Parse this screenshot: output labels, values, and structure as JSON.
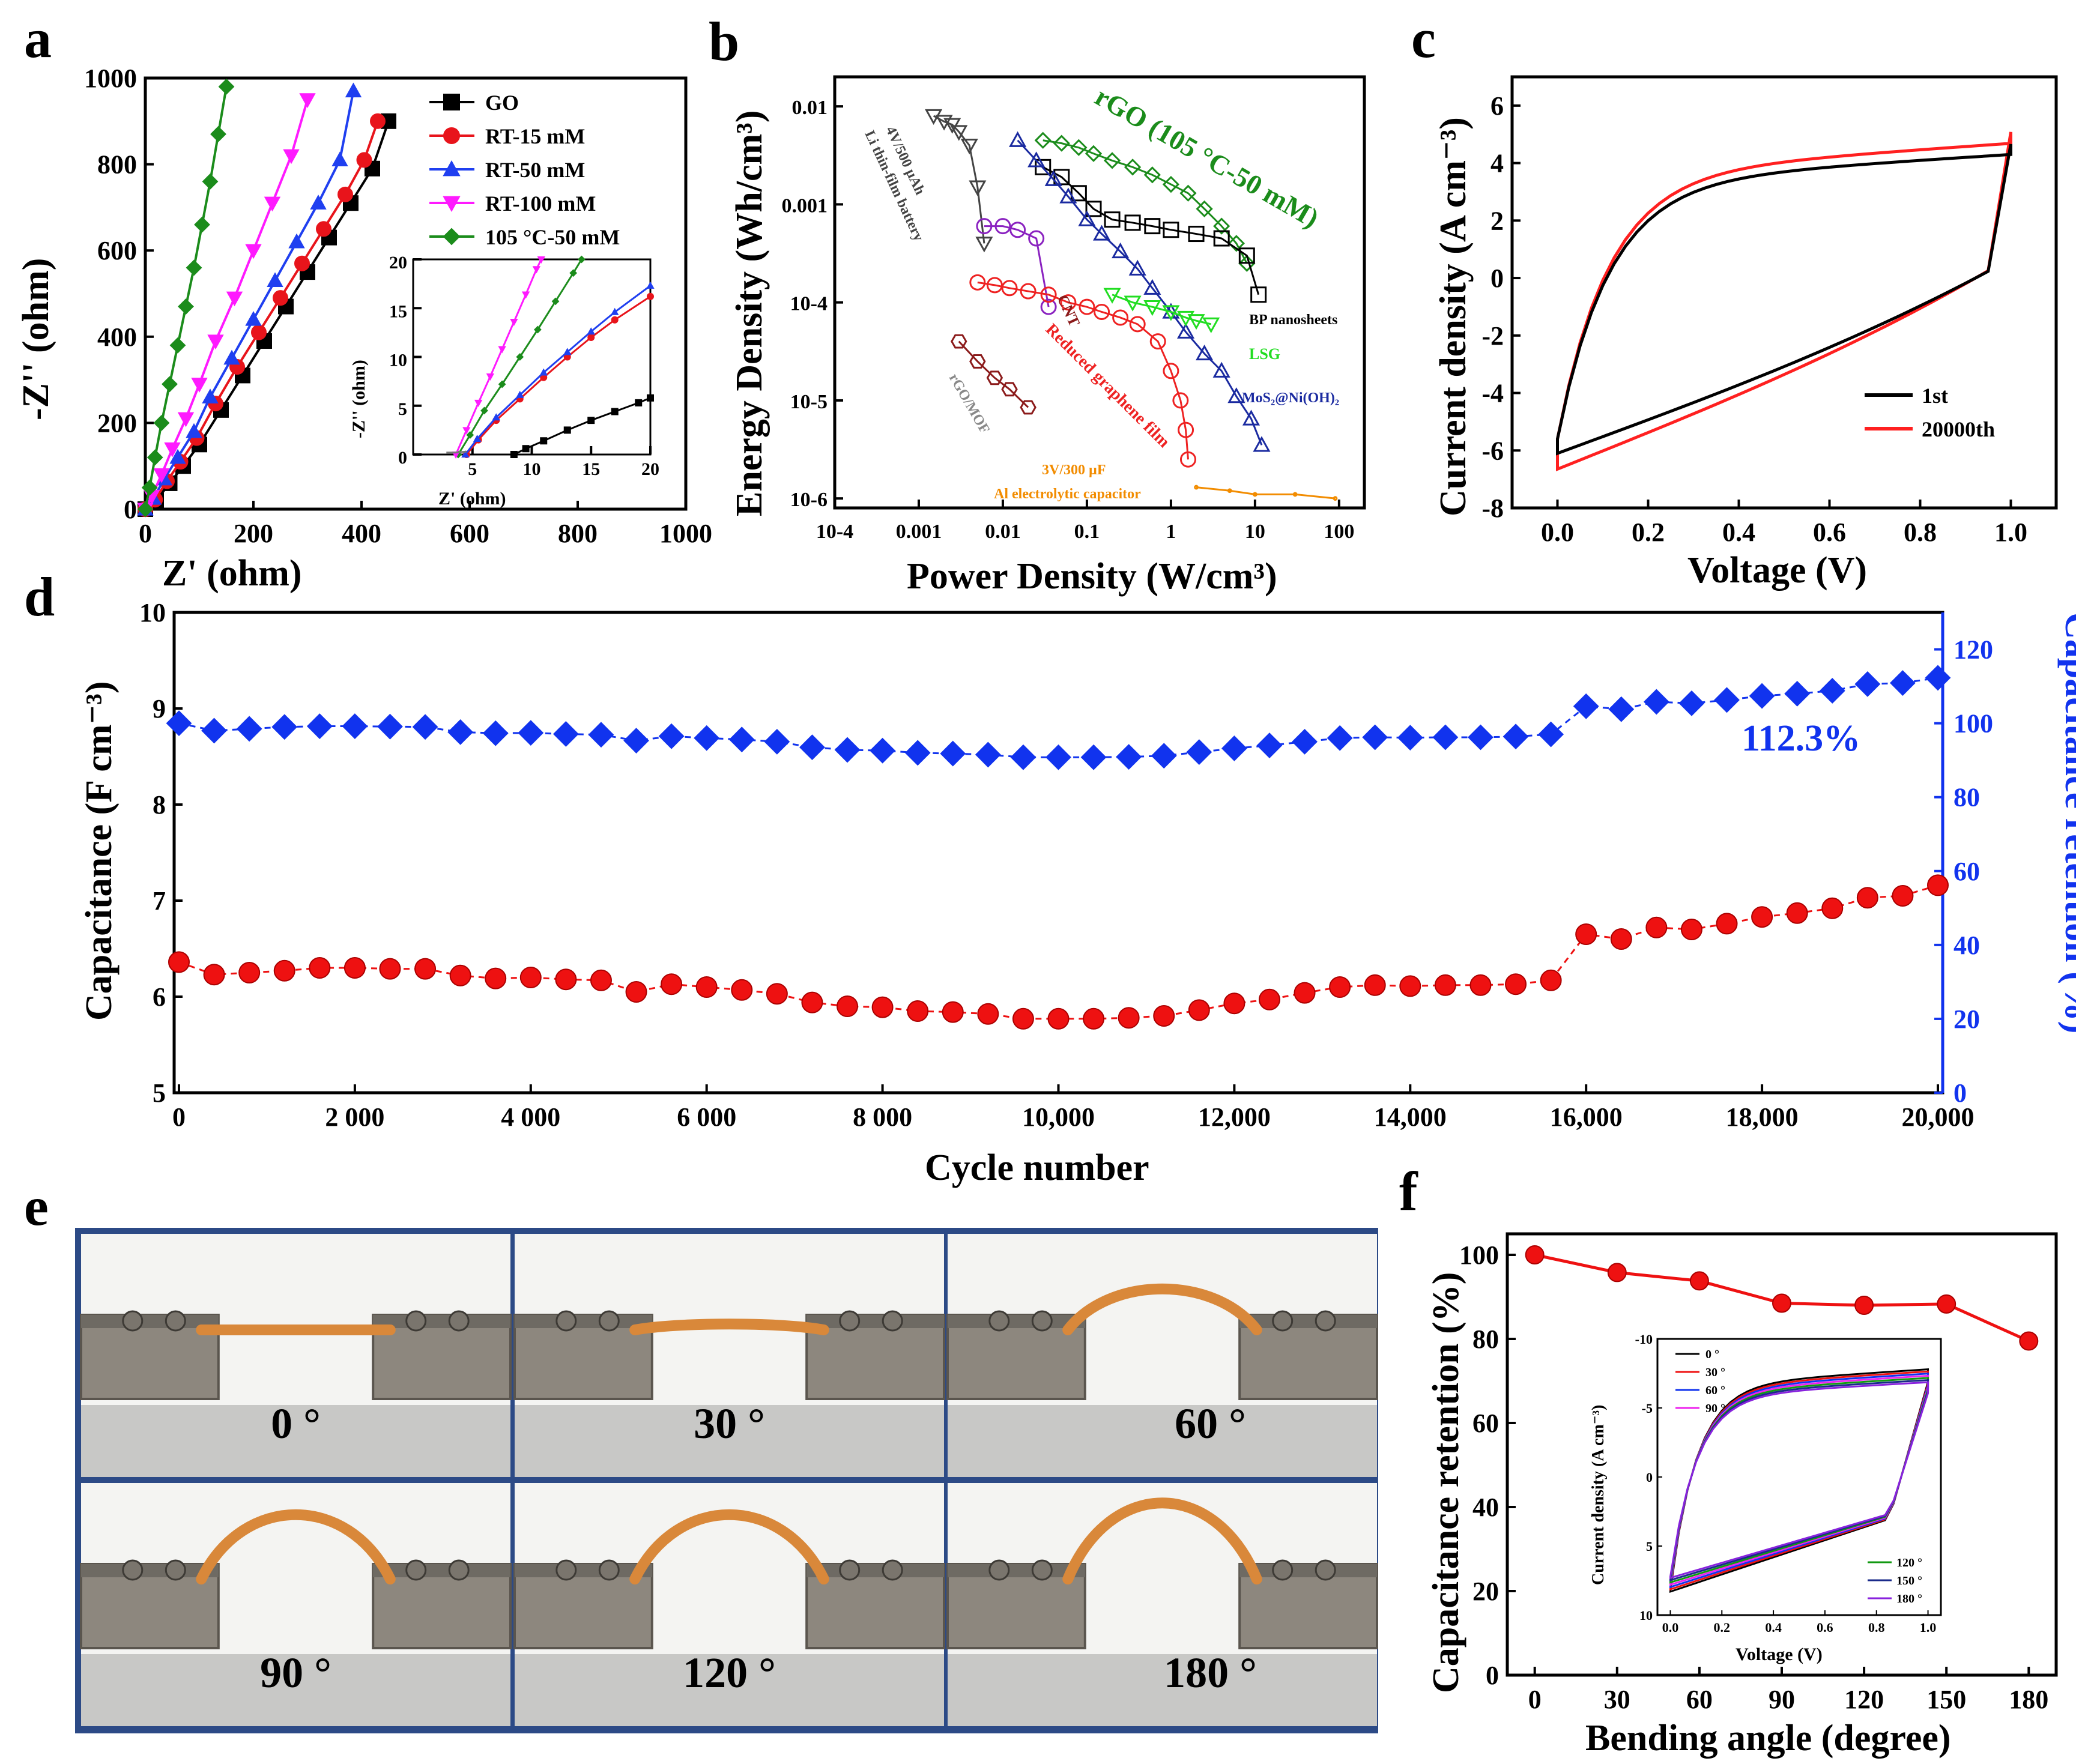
{
  "panels": {
    "a": "a",
    "b": "b",
    "c": "c",
    "d": "d",
    "e": "e",
    "f": "f"
  },
  "chart_data": [
    {
      "id": "a",
      "type": "line",
      "xlabel": "Z' (ohm)",
      "ylabel": "-Z'' (ohm)",
      "xlim": [
        0,
        1000
      ],
      "ylim": [
        0,
        1000
      ],
      "xticks": [
        "0",
        "200",
        "400",
        "600",
        "800",
        "1000"
      ],
      "yticks": [
        "0",
        "200",
        "400",
        "600",
        "800",
        "1000"
      ],
      "series": [
        {
          "name": "GO",
          "color": "#000000",
          "marker": "square",
          "x": [
            0,
            20,
            45,
            70,
            100,
            140,
            180,
            220,
            260,
            300,
            340,
            380,
            420,
            450
          ],
          "y": [
            0,
            20,
            60,
            100,
            150,
            230,
            310,
            390,
            470,
            550,
            630,
            710,
            790,
            900
          ]
        },
        {
          "name": "RT-15 mM",
          "color": "#e8141b",
          "marker": "circle",
          "x": [
            0,
            18,
            40,
            65,
            95,
            130,
            170,
            210,
            250,
            290,
            330,
            370,
            405,
            430
          ],
          "y": [
            0,
            22,
            65,
            110,
            165,
            245,
            330,
            410,
            490,
            570,
            650,
            730,
            810,
            900
          ]
        },
        {
          "name": "RT-50 mM",
          "color": "#1f3ff0",
          "marker": "triangle-up",
          "x": [
            0,
            15,
            35,
            60,
            90,
            120,
            160,
            200,
            240,
            280,
            320,
            360,
            385
          ],
          "y": [
            0,
            25,
            70,
            120,
            180,
            260,
            350,
            440,
            530,
            620,
            710,
            810,
            970
          ]
        },
        {
          "name": "RT-100 mM",
          "color": "#ff1aff",
          "marker": "triangle-down",
          "x": [
            0,
            12,
            30,
            50,
            75,
            100,
            130,
            165,
            200,
            235,
            270,
            300
          ],
          "y": [
            0,
            30,
            80,
            140,
            210,
            290,
            390,
            490,
            600,
            710,
            820,
            950
          ]
        },
        {
          "name": "105 °C-50 mM",
          "color": "#1b8c1b",
          "marker": "diamond",
          "x": [
            0,
            8,
            18,
            30,
            45,
            60,
            75,
            90,
            105,
            120,
            135,
            150
          ],
          "y": [
            0,
            50,
            120,
            200,
            290,
            380,
            470,
            560,
            660,
            760,
            870,
            980
          ]
        }
      ],
      "inset": {
        "xlabel": "Z' (ohm)",
        "ylabel": "-Z'' (ohm)",
        "xlim": [
          0,
          20
        ],
        "ylim": [
          0,
          20
        ],
        "xticks": [
          "5",
          "10",
          "15",
          "20"
        ],
        "yticks": [
          "0",
          "5",
          "10",
          "15",
          "20"
        ]
      }
    },
    {
      "id": "b",
      "type": "scatter",
      "xlabel": "Power Density (W/cm³)",
      "ylabel": "Energy Density (Wh/cm³)",
      "xscale": "log",
      "yscale": "log",
      "xlim": [
        0.0001,
        100
      ],
      "ylim": [
        1e-06,
        0.01
      ],
      "xticks": [
        "10-4",
        "0.001",
        "0.01",
        "0.1",
        "1",
        "10",
        "100"
      ],
      "yticks": [
        "10-6",
        "10-5",
        "10-4",
        "0.001",
        "0.01"
      ],
      "series": [
        {
          "name": "rGO (105 °C-50 mM)",
          "color": "#1b8c1b",
          "marker": "diamond",
          "x": [
            0.03,
            0.05,
            0.08,
            0.12,
            0.2,
            0.35,
            0.6,
            1.0,
            1.6,
            2.5,
            4.0,
            6.0,
            8.0
          ],
          "y": [
            0.0045,
            0.0042,
            0.0038,
            0.0033,
            0.0028,
            0.0024,
            0.002,
            0.0016,
            0.0013,
            0.0009,
            0.0006,
            0.0004,
            0.00025
          ]
        },
        {
          "name": "BP nanosheets",
          "color": "#000000",
          "marker": "square",
          "x": [
            0.03,
            0.05,
            0.08,
            0.12,
            0.2,
            0.35,
            0.6,
            1.0,
            2.0,
            4.0,
            8.0,
            11.0
          ],
          "y": [
            0.0024,
            0.0019,
            0.0013,
            0.0009,
            0.0007,
            0.00065,
            0.0006,
            0.00055,
            0.0005,
            0.00045,
            0.0003,
            0.00012
          ]
        },
        {
          "name": "MoS₂@Ni(OH)₂",
          "color": "#1a2aa0",
          "marker": "triangle-up",
          "x": [
            0.015,
            0.025,
            0.04,
            0.06,
            0.1,
            0.15,
            0.25,
            0.4,
            0.6,
            1.0,
            1.5,
            2.5,
            4.0,
            6.0,
            9.0,
            12.0
          ],
          "y": [
            0.0045,
            0.0028,
            0.0018,
            0.0012,
            0.0007,
            0.0005,
            0.00033,
            0.00022,
            0.00014,
            8e-05,
            5e-05,
            3e-05,
            2e-05,
            1.1e-05,
            6.5e-06,
            3.5e-06
          ]
        },
        {
          "name": "LSG",
          "color": "#22dd22",
          "marker": "triangle-down",
          "x": [
            0.2,
            0.35,
            0.6,
            1.0,
            1.5,
            2.0,
            3.0
          ],
          "y": [
            0.00012,
            0.0001,
            9e-05,
            8e-05,
            7e-05,
            6.5e-05,
            6e-05
          ]
        },
        {
          "name": "4V/500 µAh Li thin-film battery",
          "color": "#444444",
          "marker": "triangle-down",
          "x": [
            0.0015,
            0.002,
            0.0025,
            0.003,
            0.004,
            0.005,
            0.006
          ],
          "y": [
            0.008,
            0.007,
            0.0065,
            0.0055,
            0.004,
            0.0015,
            0.0004
          ]
        },
        {
          "name": "CNT",
          "color": "#8a22c0",
          "marker": "circle",
          "x": [
            0.006,
            0.01,
            0.015,
            0.025,
            0.035
          ],
          "y": [
            0.0006,
            0.0006,
            0.00055,
            0.00045,
            9e-05
          ]
        },
        {
          "name": "Reduced graphene film",
          "color": "#ee2222",
          "marker": "circle",
          "x": [
            0.005,
            0.008,
            0.012,
            0.02,
            0.035,
            0.06,
            0.1,
            0.15,
            0.25,
            0.4,
            0.7,
            1.0,
            1.3,
            1.5,
            1.6
          ],
          "y": [
            0.00016,
            0.00015,
            0.00014,
            0.00013,
            0.00012,
            0.0001,
            9e-05,
            8e-05,
            7e-05,
            6e-05,
            4e-05,
            2e-05,
            1e-05,
            5e-06,
            2.5e-06
          ]
        },
        {
          "name": "rGO/MOF",
          "color": "#8b1a1a",
          "marker": "hexagon",
          "x": [
            0.003,
            0.005,
            0.008,
            0.012,
            0.02
          ],
          "y": [
            4e-05,
            2.5e-05,
            1.7e-05,
            1.3e-05,
            8.5e-06
          ]
        },
        {
          "name": "3V/300 µF Al electrolytic capacitor",
          "color": "#f28c00",
          "marker": "line",
          "x": [
            2,
            5,
            10,
            30,
            90
          ],
          "y": [
            1.3e-06,
            1.2e-06,
            1.1e-06,
            1.1e-06,
            1e-06
          ]
        }
      ]
    },
    {
      "id": "c",
      "type": "line",
      "xlabel": "Voltage (V)",
      "ylabel": "Current density (A cm⁻³)",
      "xlim": [
        -0.1,
        1.1
      ],
      "ylim": [
        -8,
        7
      ],
      "xticks": [
        "0.0",
        "0.2",
        "0.4",
        "0.6",
        "0.8",
        "1.0"
      ],
      "yticks": [
        "-8",
        "-6",
        "-4",
        "-2",
        "0",
        "2",
        "4",
        "6"
      ],
      "series": [
        {
          "name": "1st",
          "color": "#000000"
        },
        {
          "name": "20000th",
          "color": "#ff2020"
        }
      ]
    },
    {
      "id": "d",
      "type": "scatter",
      "xlabel": "Cycle number",
      "ylabel": "Capacitance (F cm⁻³)",
      "y2label": "Capacitance retention (%)",
      "xlim": [
        0,
        20000
      ],
      "ylim": [
        5,
        10
      ],
      "y2lim": [
        0,
        130
      ],
      "xticks": [
        "0",
        "2 000",
        "4 000",
        "6 000",
        "8 000",
        "10,000",
        "12,000",
        "14,000",
        "16,000",
        "18,000",
        "20,000"
      ],
      "yticks": [
        "5",
        "6",
        "7",
        "8",
        "9",
        "10"
      ],
      "y2ticks": [
        "0",
        "20",
        "40",
        "60",
        "80",
        "100",
        "120"
      ],
      "annotation": "112.3%",
      "x": [
        0,
        400,
        800,
        1200,
        1600,
        2000,
        2400,
        2800,
        3200,
        3600,
        4000,
        4400,
        4800,
        5200,
        5600,
        6000,
        6400,
        6800,
        7200,
        7600,
        8000,
        8400,
        8800,
        9200,
        9600,
        10000,
        10400,
        10800,
        11200,
        11600,
        12000,
        12400,
        12800,
        13200,
        13600,
        14000,
        14400,
        14800,
        15200,
        15600,
        16000,
        16400,
        16800,
        17200,
        17600,
        18000,
        18400,
        18800,
        19200,
        19600,
        20000
      ],
      "series": [
        {
          "name": "Capacitance",
          "color": "#ee1111",
          "axis": "left",
          "values": [
            6.36,
            6.23,
            6.25,
            6.27,
            6.3,
            6.3,
            6.29,
            6.29,
            6.22,
            6.19,
            6.2,
            6.18,
            6.17,
            6.05,
            6.13,
            6.1,
            6.07,
            6.03,
            5.94,
            5.9,
            5.89,
            5.85,
            5.84,
            5.82,
            5.77,
            5.77,
            5.77,
            5.78,
            5.8,
            5.86,
            5.93,
            5.97,
            6.04,
            6.1,
            6.12,
            6.11,
            6.12,
            6.12,
            6.13,
            6.17,
            6.65,
            6.6,
            6.72,
            6.7,
            6.76,
            6.83,
            6.87,
            6.92,
            7.03,
            7.05,
            7.16
          ]
        },
        {
          "name": "Capacitance retention",
          "color": "#1133ee",
          "axis": "right",
          "values": [
            100,
            98,
            98.5,
            99,
            99.2,
            99.2,
            99.1,
            99,
            97.6,
            97.3,
            97.4,
            97.1,
            96.9,
            95.3,
            96.5,
            96,
            95.6,
            95,
            93.5,
            92.8,
            92.6,
            92,
            91.8,
            91.5,
            90.8,
            90.8,
            90.8,
            90.9,
            91.2,
            92.2,
            93.2,
            94,
            95,
            96,
            96.2,
            96.1,
            96.2,
            96.2,
            96.4,
            97,
            104.6,
            103.8,
            105.8,
            105.4,
            106.3,
            107.4,
            108,
            108.8,
            110.6,
            110.9,
            112.3
          ]
        }
      ]
    },
    {
      "id": "f",
      "type": "line",
      "xlabel": "Bending angle (degree)",
      "ylabel": "Capacitance retention (%)",
      "xlim": [
        -10,
        190
      ],
      "ylim": [
        0,
        105
      ],
      "xticks": [
        "0",
        "30",
        "60",
        "90",
        "120",
        "150",
        "180"
      ],
      "yticks": [
        "0",
        "20",
        "40",
        "60",
        "80",
        "100"
      ],
      "x": [
        0,
        30,
        60,
        90,
        120,
        150,
        180
      ],
      "values": [
        100,
        95.8,
        93.8,
        88.5,
        88,
        88.3,
        79.5
      ],
      "inset": {
        "xlabel": "Voltage (V)",
        "ylabel": "Current density (A cm⁻³)",
        "xticks": [
          "0.0",
          "0.2",
          "0.4",
          "0.6",
          "0.8",
          "1.0"
        ],
        "yticks": [
          "-10",
          "-5",
          "0",
          "5",
          "10"
        ],
        "legend_left": [
          "0 °",
          "30 °",
          "60 °",
          "90 °"
        ],
        "legend_right": [
          "120 °",
          "150 °",
          "180 °"
        ],
        "colors": [
          "#000000",
          "#ee1111",
          "#1133ee",
          "#ee22ee",
          "#119911",
          "#1a2a8a",
          "#8822dd"
        ]
      }
    }
  ],
  "annotations_b": {
    "battery": "4V/500 µAh",
    "battery2": "Li thin-film battery",
    "cnt": "CNT",
    "rgf": "Reduced graphene film",
    "rgomof": "rGO/MOF",
    "alcap1": "3V/300 µF",
    "alcap2": "Al electrolytic capacitor",
    "bp": "BP nanosheets",
    "lsg": "LSG",
    "mos2": "MoS₂@Ni(OH)₂",
    "rgo": "rGO (105 °C-50 mM)"
  },
  "photos": {
    "labels": [
      "0 °",
      "30 °",
      "60 °",
      "90 °",
      "120 °",
      "180 °"
    ]
  }
}
